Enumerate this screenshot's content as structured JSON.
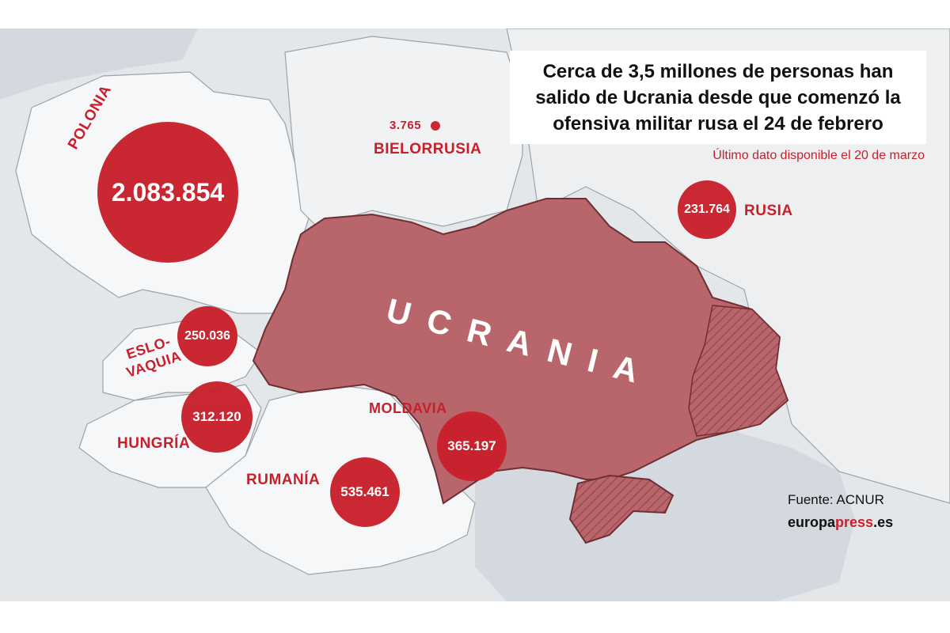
{
  "title": "Cerca de 3,5 millones de personas han salido de Ucrania desde que comenzó la ofensiva militar rusa el 24 de febrero",
  "subtitle": "Último dato disponible el 20 de marzo",
  "source": "Fuente: ACNUR",
  "brand": {
    "prefix": "europa",
    "accent": "press",
    "suffix": ".es"
  },
  "main_country": "UCRANIA",
  "countries": {
    "polonia": {
      "label": "POLONIA",
      "value": "2.083.854"
    },
    "bielorrusia": {
      "label": "BIELORRUSIA",
      "value": "3.765"
    },
    "rusia": {
      "label": "RUSIA",
      "value": "231.764"
    },
    "eslovaquia": {
      "label_line1": "ESLO-",
      "label_line2": "VAQUIA",
      "value": "250.036"
    },
    "hungria": {
      "label": "HUNGRÍA",
      "value": "312.120"
    },
    "rumania": {
      "label": "RUMANÍA",
      "value": "535.461"
    },
    "moldavia": {
      "label": "MOLDAVIA",
      "value": "365.197"
    }
  },
  "colors": {
    "accent": "#c8202b",
    "ukraine_fill": "#b8666b",
    "land": "#eef0f2",
    "sea": "#d3d9de",
    "border": "#9aa3aa"
  }
}
